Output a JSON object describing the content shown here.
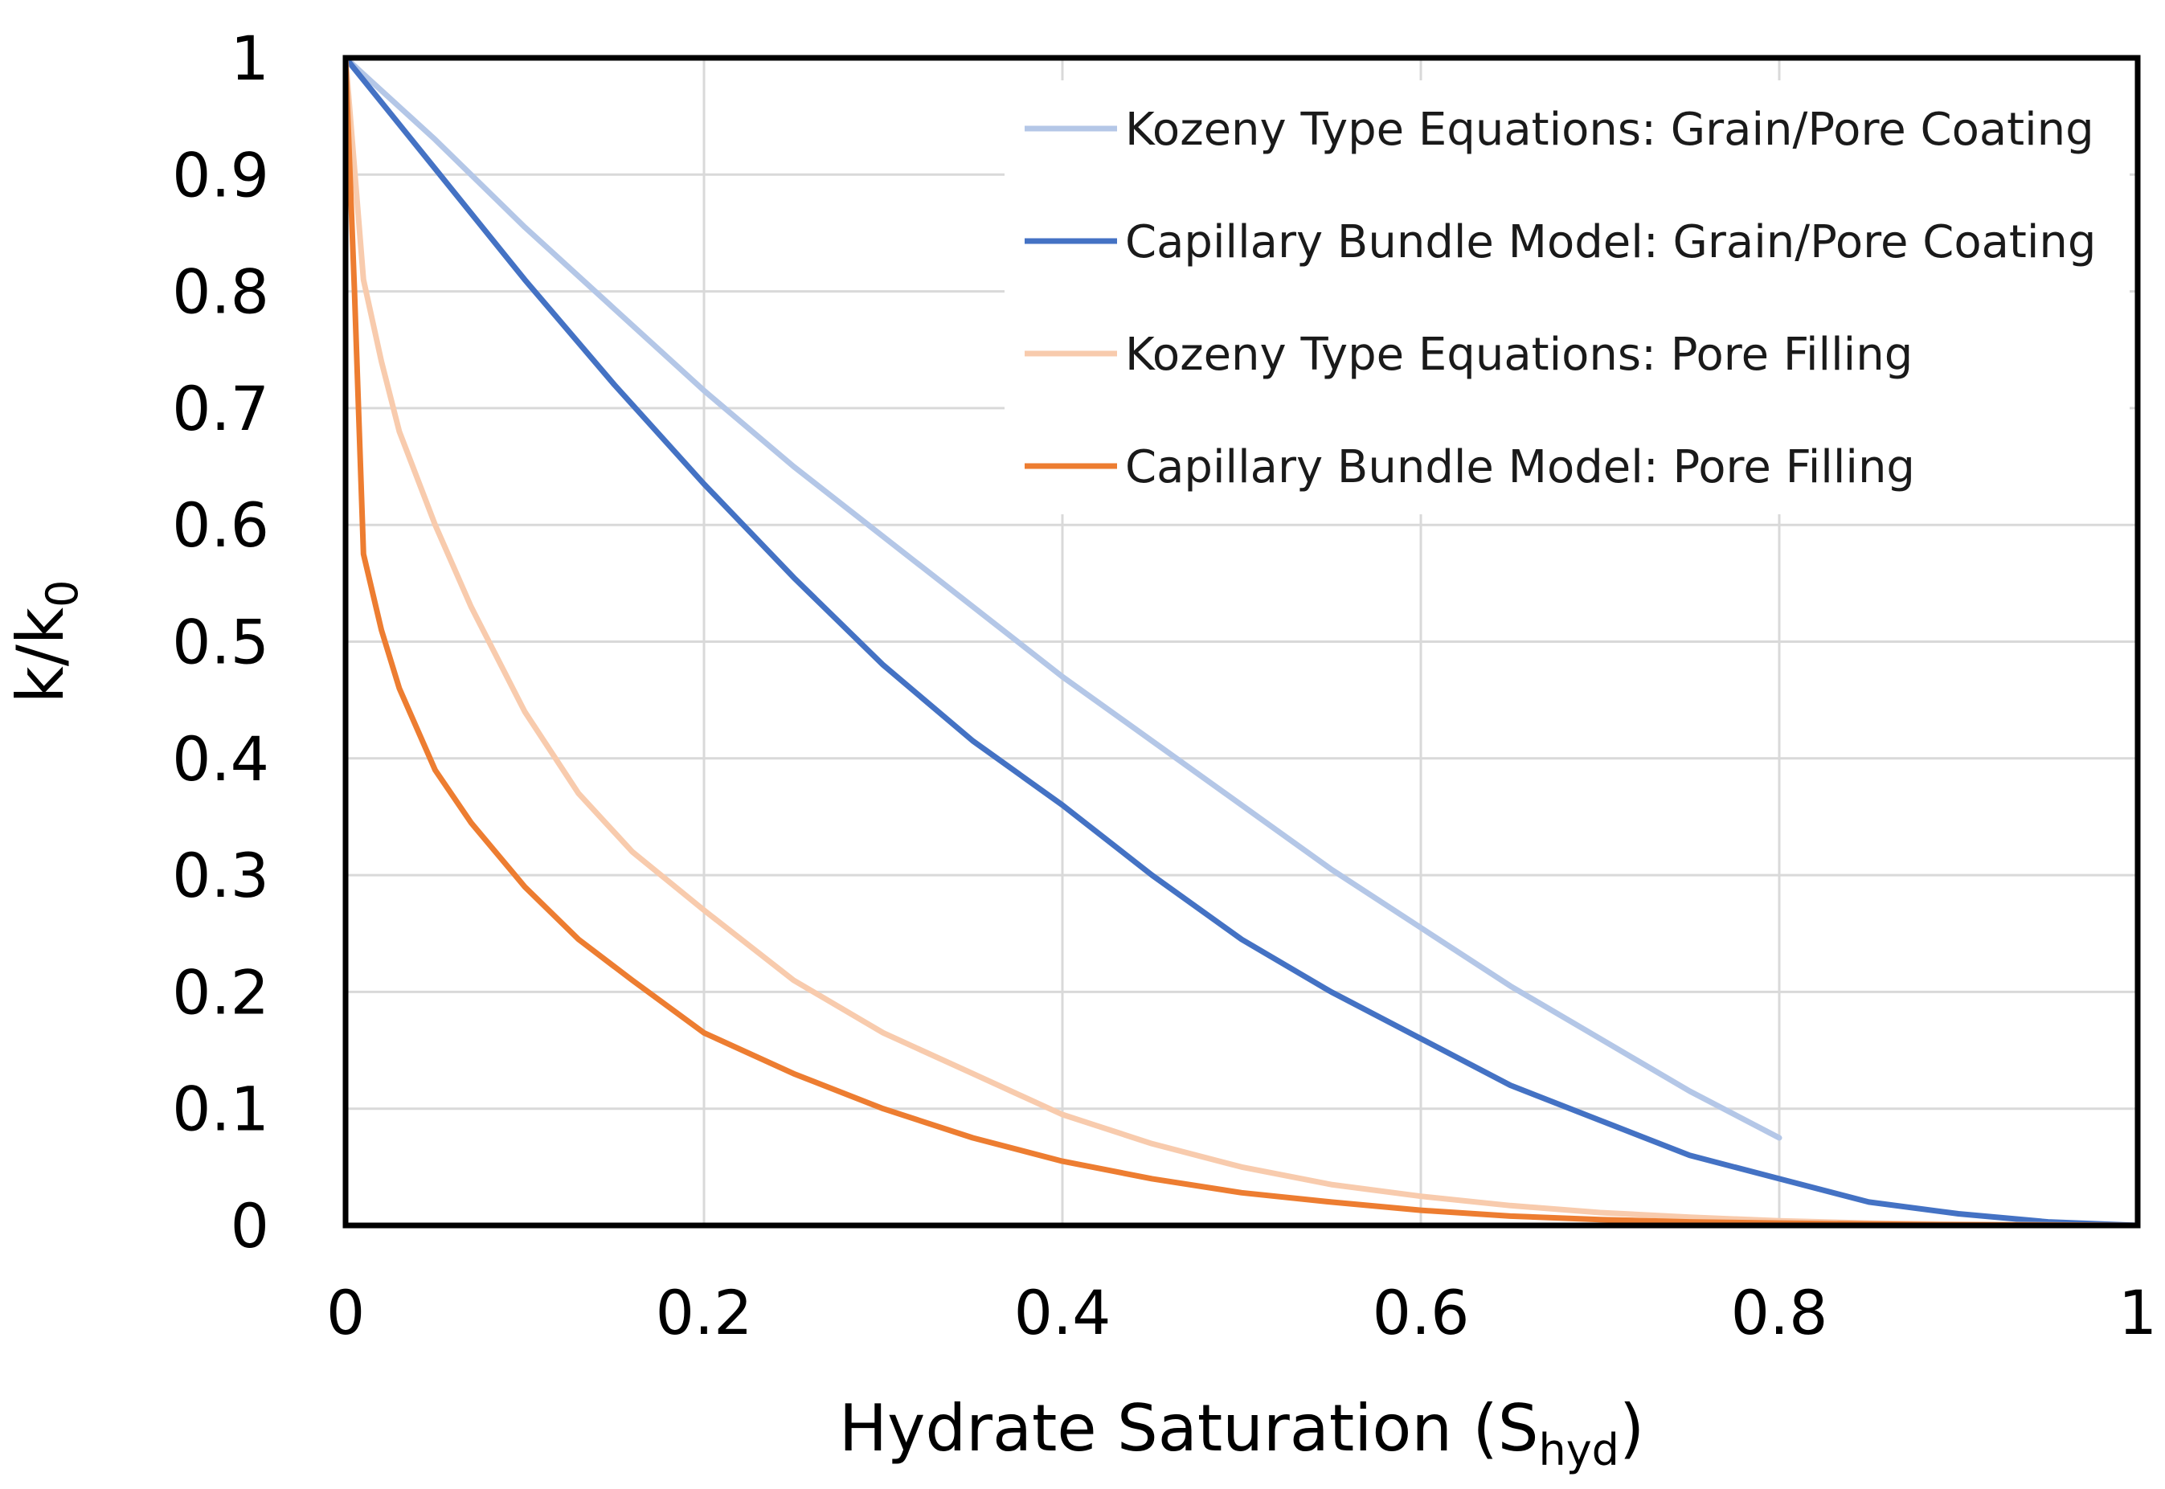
{
  "chart_data": {
    "type": "line",
    "title": "",
    "xlabel": {
      "main": "Hydrate Saturation (S",
      "sub": "hyd",
      "suffix": ")"
    },
    "ylabel": {
      "main": "k/k",
      "sub": "0"
    },
    "xlim": [
      0,
      1
    ],
    "ylim": [
      0,
      1
    ],
    "x_ticks": [
      0,
      0.2,
      0.4,
      0.6,
      0.8,
      1
    ],
    "x_tick_labels": [
      "0",
      "0.2",
      "0.4",
      "0.6",
      "0.8",
      "1"
    ],
    "y_ticks": [
      0,
      0.1,
      0.2,
      0.3,
      0.4,
      0.5,
      0.6,
      0.7,
      0.8,
      0.9,
      1
    ],
    "y_tick_labels": [
      "0",
      "0.1",
      "0.2",
      "0.3",
      "0.4",
      "0.5",
      "0.6",
      "0.7",
      "0.8",
      "0.9",
      "1"
    ],
    "grid": true,
    "legend_position": "top-right",
    "series": [
      {
        "name": "Kozeny Type Equations: Grain/Pore Coating",
        "color": "#b4c7e7",
        "x": [
          0,
          0.05,
          0.1,
          0.15,
          0.2,
          0.25,
          0.3,
          0.35,
          0.4,
          0.45,
          0.5,
          0.55,
          0.6,
          0.65,
          0.7,
          0.75,
          0.8
        ],
        "y": [
          1,
          0.93,
          0.855,
          0.785,
          0.715,
          0.65,
          0.59,
          0.53,
          0.47,
          0.415,
          0.36,
          0.305,
          0.255,
          0.205,
          0.16,
          0.115,
          0.075
        ]
      },
      {
        "name": "Capillary Bundle Model: Grain/Pore Coating",
        "color": "#4472c4",
        "x": [
          0,
          0.05,
          0.1,
          0.15,
          0.2,
          0.25,
          0.3,
          0.35,
          0.4,
          0.45,
          0.5,
          0.55,
          0.6,
          0.65,
          0.7,
          0.75,
          0.8,
          0.85,
          0.9,
          0.95,
          1
        ],
        "y": [
          1,
          0.905,
          0.81,
          0.72,
          0.635,
          0.555,
          0.48,
          0.415,
          0.36,
          0.3,
          0.245,
          0.2,
          0.16,
          0.12,
          0.09,
          0.06,
          0.04,
          0.02,
          0.01,
          0.003,
          0
        ]
      },
      {
        "name": "Kozeny Type Equations: Pore Filling",
        "color": "#f8cbad",
        "x": [
          0,
          0.01,
          0.02,
          0.03,
          0.05,
          0.07,
          0.1,
          0.13,
          0.16,
          0.2,
          0.25,
          0.3,
          0.35,
          0.4,
          0.45,
          0.5,
          0.55,
          0.6,
          0.65,
          0.7,
          0.75,
          0.8,
          0.85,
          0.9,
          1
        ],
        "y": [
          1,
          0.81,
          0.74,
          0.68,
          0.6,
          0.53,
          0.44,
          0.37,
          0.32,
          0.27,
          0.21,
          0.165,
          0.13,
          0.095,
          0.07,
          0.05,
          0.035,
          0.025,
          0.017,
          0.011,
          0.007,
          0.004,
          0.002,
          0.001,
          0
        ]
      },
      {
        "name": "Capillary Bundle Model: Pore Filling",
        "color": "#ed7d31",
        "x": [
          0,
          0.005,
          0.01,
          0.02,
          0.03,
          0.05,
          0.07,
          0.1,
          0.13,
          0.16,
          0.2,
          0.25,
          0.3,
          0.35,
          0.4,
          0.45,
          0.5,
          0.55,
          0.6,
          0.65,
          0.7,
          0.75,
          0.8,
          0.9,
          1
        ],
        "y": [
          1,
          0.8,
          0.575,
          0.51,
          0.46,
          0.39,
          0.345,
          0.29,
          0.245,
          0.21,
          0.165,
          0.13,
          0.1,
          0.075,
          0.055,
          0.04,
          0.028,
          0.02,
          0.013,
          0.008,
          0.005,
          0.003,
          0.002,
          0.0005,
          0
        ]
      }
    ]
  }
}
